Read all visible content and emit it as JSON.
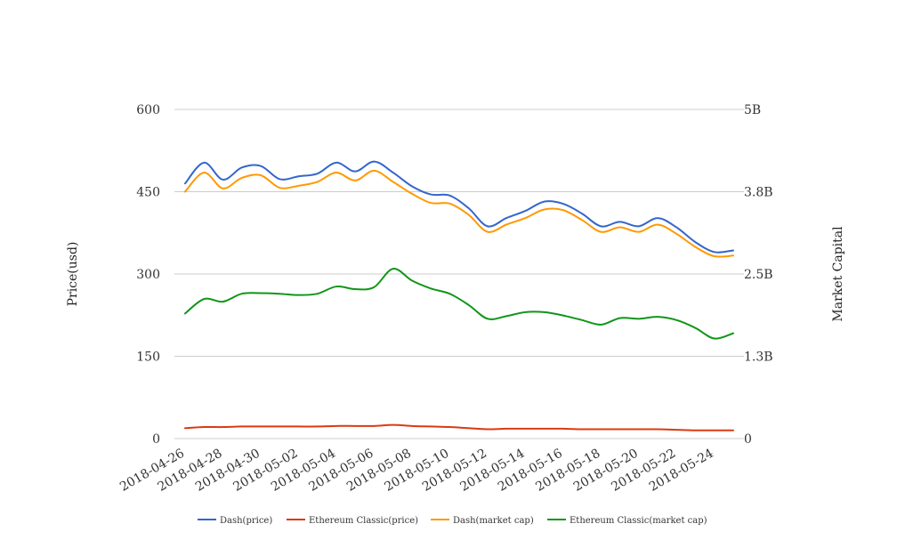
{
  "chart_data": {
    "type": "line",
    "title": "",
    "ylabel_left": "Price(usd)",
    "ylabel_right": "Market Capital",
    "x": [
      "2018-04-26",
      "2018-04-27",
      "2018-04-28",
      "2018-04-29",
      "2018-04-30",
      "2018-05-01",
      "2018-05-02",
      "2018-05-03",
      "2018-05-04",
      "2018-05-05",
      "2018-05-06",
      "2018-05-07",
      "2018-05-08",
      "2018-05-09",
      "2018-05-10",
      "2018-05-11",
      "2018-05-12",
      "2018-05-13",
      "2018-05-14",
      "2018-05-15",
      "2018-05-16",
      "2018-05-17",
      "2018-05-18",
      "2018-05-19",
      "2018-05-20",
      "2018-05-21",
      "2018-05-22",
      "2018-05-23",
      "2018-05-24",
      "2018-05-25"
    ],
    "x_tick_labels": [
      "2018-04-26",
      "2018-04-28",
      "2018-04-30",
      "2018-05-02",
      "2018-05-04",
      "2018-05-06",
      "2018-05-08",
      "2018-05-10",
      "2018-05-12",
      "2018-05-14",
      "2018-05-16",
      "2018-05-18",
      "2018-05-20",
      "2018-05-22",
      "2018-05-24"
    ],
    "y_left": {
      "ylim": [
        0,
        600
      ],
      "ticks": [
        0,
        150,
        300,
        450,
        600
      ],
      "tick_labels": [
        "0",
        "150",
        "300",
        "450",
        "600"
      ]
    },
    "y_right": {
      "ylim": [
        0,
        5000000000
      ],
      "ticks": [
        0,
        1250000000,
        2500000000,
        3750000000,
        5000000000
      ],
      "tick_labels": [
        "0",
        "1.3B",
        "2.5B",
        "3.8B",
        "5B"
      ]
    },
    "grid": true,
    "legend_position": "bottom",
    "series": [
      {
        "name": "Dash(price)",
        "axis": "left",
        "color": "#3366cc",
        "values": [
          465,
          503,
          472,
          494,
          497,
          473,
          478,
          483,
          503,
          487,
          505,
          485,
          460,
          445,
          443,
          420,
          387,
          402,
          415,
          432,
          428,
          410,
          387,
          395,
          387,
          402,
          385,
          358,
          340,
          343
        ]
      },
      {
        "name": "Ethereum Classic(price)",
        "axis": "left",
        "color": "#dc3912",
        "values": [
          19,
          21,
          21,
          22,
          22,
          22,
          22,
          22,
          23,
          23,
          23,
          25,
          23,
          22,
          21,
          19,
          17,
          18,
          18,
          18,
          18,
          17,
          17,
          17,
          17,
          17,
          16,
          15,
          15,
          15
        ]
      },
      {
        "name": "Dash(market cap)",
        "axis": "right",
        "color": "#ff9900",
        "values": [
          3750000000,
          4040000000,
          3800000000,
          3960000000,
          4000000000,
          3810000000,
          3840000000,
          3900000000,
          4040000000,
          3920000000,
          4070000000,
          3900000000,
          3720000000,
          3580000000,
          3570000000,
          3400000000,
          3140000000,
          3250000000,
          3350000000,
          3480000000,
          3470000000,
          3320000000,
          3140000000,
          3210000000,
          3140000000,
          3250000000,
          3110000000,
          2910000000,
          2770000000,
          2780000000
        ]
      },
      {
        "name": "Ethereum Classic(market cap)",
        "axis": "right",
        "color": "#109618",
        "values": [
          1900000000,
          2120000000,
          2080000000,
          2200000000,
          2210000000,
          2200000000,
          2180000000,
          2200000000,
          2310000000,
          2270000000,
          2300000000,
          2580000000,
          2400000000,
          2280000000,
          2200000000,
          2030000000,
          1820000000,
          1860000000,
          1920000000,
          1920000000,
          1870000000,
          1800000000,
          1730000000,
          1830000000,
          1820000000,
          1850000000,
          1800000000,
          1680000000,
          1520000000,
          1600000000
        ]
      }
    ]
  }
}
